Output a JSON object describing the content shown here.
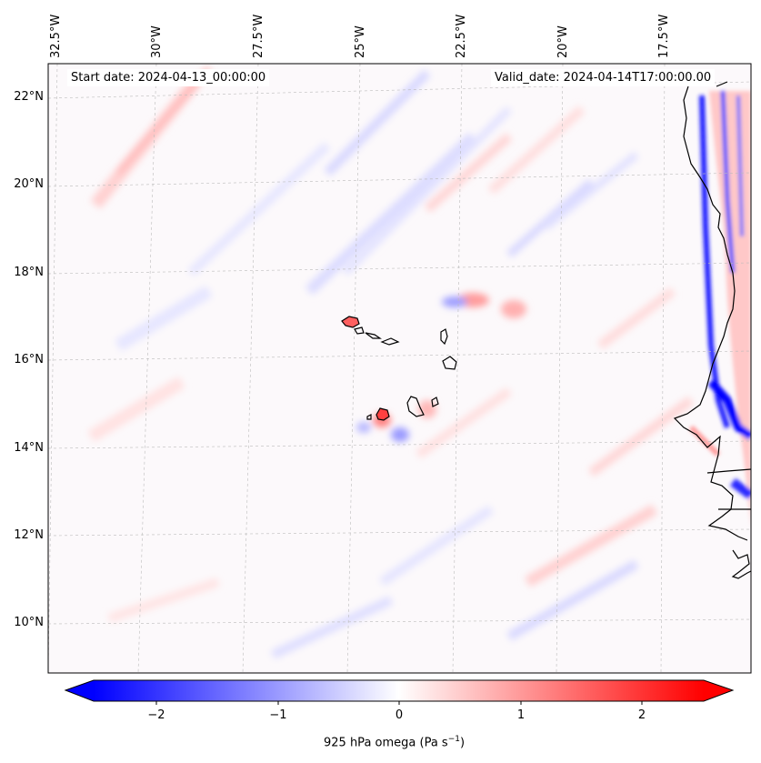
{
  "map": {
    "start_label": "Start date: 2024-04-13_00:00:00",
    "valid_label": "Valid_date: 2024-04-14T17:00:00.00",
    "lon_labels": [
      "32.5°W",
      "30°W",
      "27.5°W",
      "25°W",
      "22.5°W",
      "20°W",
      "17.5°W"
    ],
    "lat_labels": [
      "22°N",
      "20°N",
      "18°N",
      "16°N",
      "14°N",
      "12°N",
      "10°N"
    ],
    "field": "925 hPa omega",
    "colormap": "bwr",
    "colors": {
      "negative": "#0000ff",
      "zero": "#ffffff",
      "positive": "#ff0000",
      "coast": "#000000",
      "grid": "#bbbbbb"
    }
  },
  "colorbar": {
    "label_main": "925 hPa omega (Pa s",
    "label_exp": "−1",
    "label_close": ")",
    "ticks": [
      "−2",
      "−1",
      "0",
      "1",
      "2"
    ],
    "range": [
      -2.7,
      2.7
    ],
    "extend": "both"
  }
}
